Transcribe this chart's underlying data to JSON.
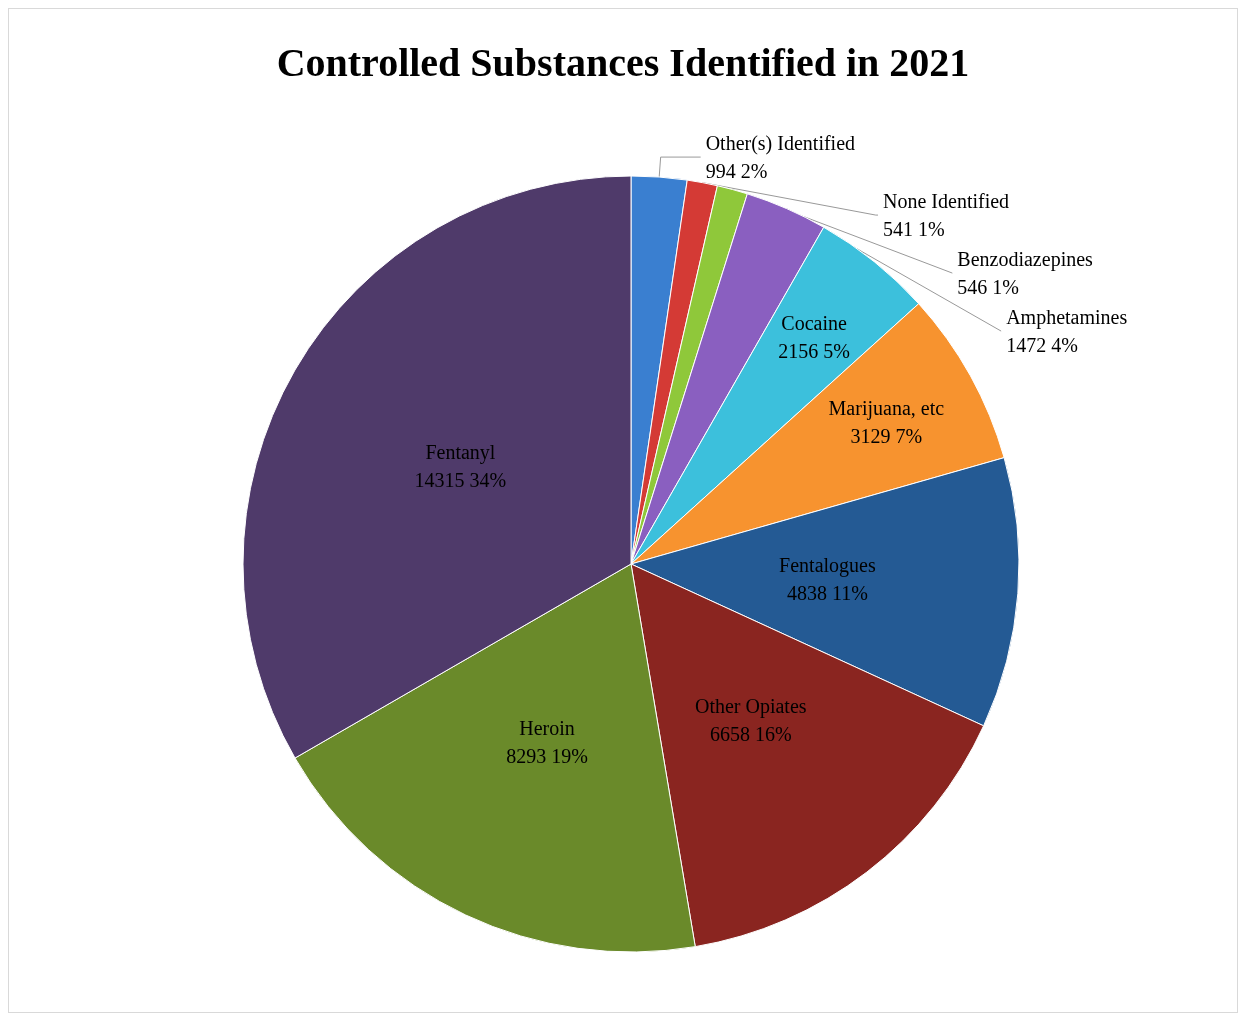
{
  "chart_data": {
    "type": "pie",
    "title": "Controlled Substances Identified in 2021",
    "categories": [
      "Other(s) Identified",
      "None Identified",
      "Benzodiazepines",
      "Amphetamines",
      "Cocaine",
      "Marijuana, etc",
      "Fentalogues",
      "Other Opiates",
      "Heroin",
      "Fentanyl"
    ],
    "values": [
      994,
      541,
      546,
      1472,
      2156,
      3129,
      4838,
      6658,
      8293,
      14315
    ],
    "value_labels": [
      "994 2%",
      "541 1%",
      "546 1%",
      "1472 4%",
      "2156 5%",
      "3129 7%",
      "4838 11%",
      "6658 16%",
      "8293 19%",
      "14315 34%"
    ],
    "colors": [
      "#3a7fd0",
      "#d43a35",
      "#8fc83a",
      "#8a5fc0",
      "#3cc0dc",
      "#f7932f",
      "#245a94",
      "#8a2520",
      "#6a8a2a",
      "#4f3a6a"
    ],
    "legend": false
  }
}
